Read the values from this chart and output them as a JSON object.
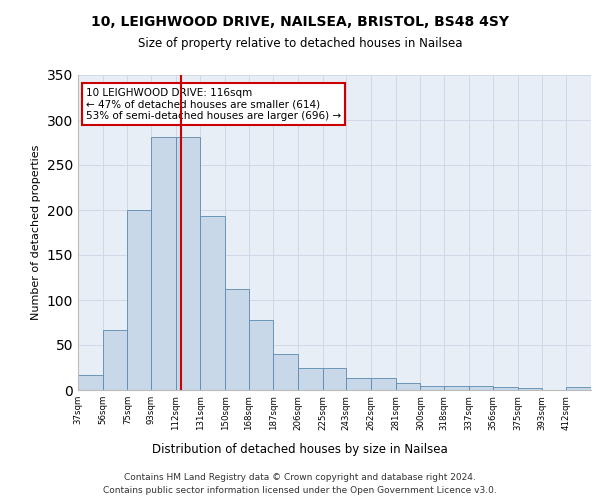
{
  "title1": "10, LEIGHWOOD DRIVE, NAILSEA, BRISTOL, BS48 4SY",
  "title2": "Size of property relative to detached houses in Nailsea",
  "xlabel": "Distribution of detached houses by size in Nailsea",
  "ylabel": "Number of detached properties",
  "bin_labels": [
    "37sqm",
    "56sqm",
    "75sqm",
    "93sqm",
    "112sqm",
    "131sqm",
    "150sqm",
    "168sqm",
    "187sqm",
    "206sqm",
    "225sqm",
    "243sqm",
    "262sqm",
    "281sqm",
    "300sqm",
    "318sqm",
    "337sqm",
    "356sqm",
    "375sqm",
    "393sqm",
    "412sqm"
  ],
  "bin_edges": [
    37,
    56,
    75,
    93,
    112,
    131,
    150,
    168,
    187,
    206,
    225,
    243,
    262,
    281,
    300,
    318,
    337,
    356,
    375,
    393,
    412
  ],
  "bar_heights": [
    17,
    67,
    200,
    281,
    281,
    193,
    112,
    78,
    40,
    25,
    25,
    13,
    13,
    8,
    5,
    5,
    5,
    3,
    2,
    0,
    3
  ],
  "bar_color": "#c8d8e8",
  "bar_edge_color": "#5a8ab0",
  "property_size": 116,
  "vline_color": "#cc0000",
  "annotation_line1": "10 LEIGHWOOD DRIVE: 116sqm",
  "annotation_line2": "← 47% of detached houses are smaller (614)",
  "annotation_line3": "53% of semi-detached houses are larger (696) →",
  "annotation_box_color": "#ffffff",
  "annotation_box_edge_color": "#cc0000",
  "grid_color": "#d0d8e8",
  "background_color": "#e8eef5",
  "footer_line1": "Contains HM Land Registry data © Crown copyright and database right 2024.",
  "footer_line2": "Contains public sector information licensed under the Open Government Licence v3.0.",
  "ylim": [
    0,
    350
  ]
}
